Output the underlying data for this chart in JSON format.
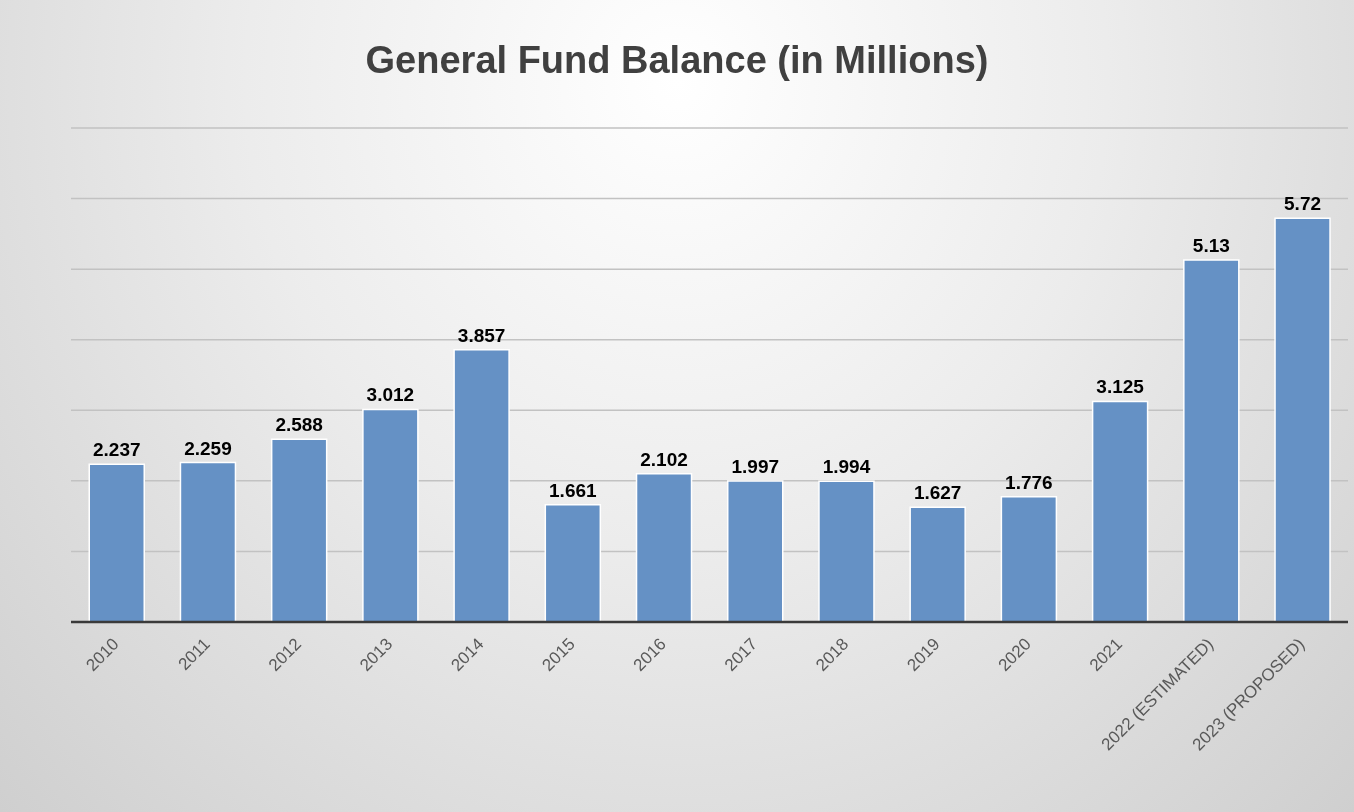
{
  "chart_data": {
    "type": "bar",
    "title": "General Fund Balance (in Millions)",
    "categories": [
      "2010",
      "2011",
      "2012",
      "2013",
      "2014",
      "2015",
      "2016",
      "2017",
      "2018",
      "2019",
      "2020",
      "2021",
      "2022 (ESTIMATED)",
      "2023 (PROPOSED)"
    ],
    "values": [
      2.237,
      2.259,
      2.588,
      3.012,
      3.857,
      1.661,
      2.102,
      1.997,
      1.994,
      1.627,
      1.776,
      3.125,
      5.13,
      5.72
    ],
    "color": "#6591c5",
    "ylim": [
      0,
      7
    ],
    "grid": "y",
    "tick_labels": "x",
    "data_labels": true,
    "legend": false
  }
}
